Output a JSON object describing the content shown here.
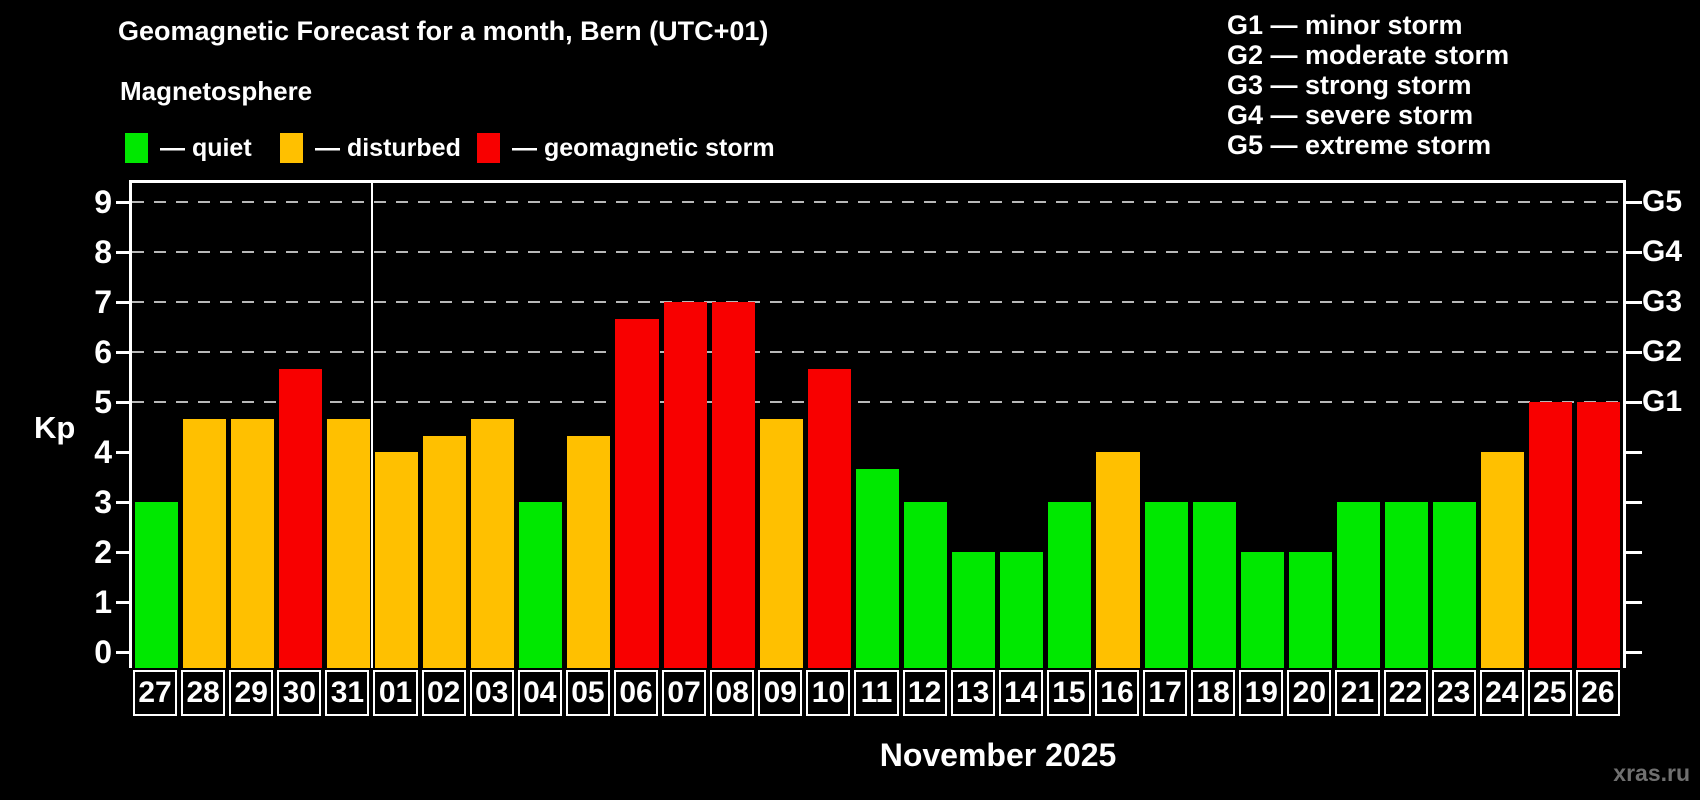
{
  "title": "Geomagnetic Forecast for a month, Bern (UTC+01)",
  "subtitle": "Magnetosphere",
  "watermark": "xras.ru",
  "colors": {
    "quiet": "#00e800",
    "disturbed": "#ffc000",
    "storm": "#f80000",
    "grid": "#b8b8b8",
    "axis": "#ffffff",
    "watermark": "#707070",
    "background": "#000000"
  },
  "legend": {
    "items": [
      {
        "key": "quiet",
        "label": "— quiet"
      },
      {
        "key": "disturbed",
        "label": "— disturbed"
      },
      {
        "key": "storm",
        "label": "— geomagnetic storm"
      }
    ]
  },
  "storm_scale": [
    "G1 — minor storm",
    "G2 — moderate storm",
    "G3 — strong storm",
    "G4 — severe storm",
    "G5 — extreme storm"
  ],
  "chart_data": {
    "type": "bar",
    "title": "Geomagnetic Forecast for a month, Bern (UTC+01)",
    "xlabel": "November 2025",
    "ylabel": "Kp",
    "ylim": [
      0,
      9
    ],
    "grid": "dashed horizontal at Kp 5-9 only",
    "legend_position": "top-left",
    "categories": [
      "27",
      "28",
      "29",
      "30",
      "31",
      "01",
      "02",
      "03",
      "04",
      "05",
      "06",
      "07",
      "08",
      "09",
      "10",
      "11",
      "12",
      "13",
      "14",
      "15",
      "16",
      "17",
      "18",
      "19",
      "20",
      "21",
      "22",
      "23",
      "24",
      "25",
      "26"
    ],
    "values": [
      3,
      4.67,
      4.67,
      5.67,
      4.67,
      4,
      4.33,
      4.67,
      3,
      4.33,
      6.67,
      7,
      7,
      4.67,
      5.67,
      3.67,
      3,
      2,
      2,
      3,
      4,
      3,
      3,
      2,
      2,
      3,
      3,
      3,
      4,
      5,
      5
    ],
    "statuses": [
      "quiet",
      "disturbed",
      "disturbed",
      "storm",
      "disturbed",
      "disturbed",
      "disturbed",
      "disturbed",
      "quiet",
      "disturbed",
      "storm",
      "storm",
      "storm",
      "disturbed",
      "storm",
      "quiet",
      "quiet",
      "quiet",
      "quiet",
      "quiet",
      "disturbed",
      "quiet",
      "quiet",
      "quiet",
      "quiet",
      "quiet",
      "quiet",
      "quiet",
      "disturbed",
      "storm",
      "storm"
    ],
    "left_ticks": [
      0,
      1,
      2,
      3,
      4,
      5,
      6,
      7,
      8,
      9
    ],
    "right_tick_labels": [
      {
        "kp": 5,
        "label": "G1"
      },
      {
        "kp": 6,
        "label": "G2"
      },
      {
        "kp": 7,
        "label": "G3"
      },
      {
        "kp": 8,
        "label": "G4"
      },
      {
        "kp": 9,
        "label": "G5"
      }
    ],
    "gridlines_at": [
      5,
      6,
      7,
      8,
      9
    ],
    "month_separator_after": "31"
  }
}
